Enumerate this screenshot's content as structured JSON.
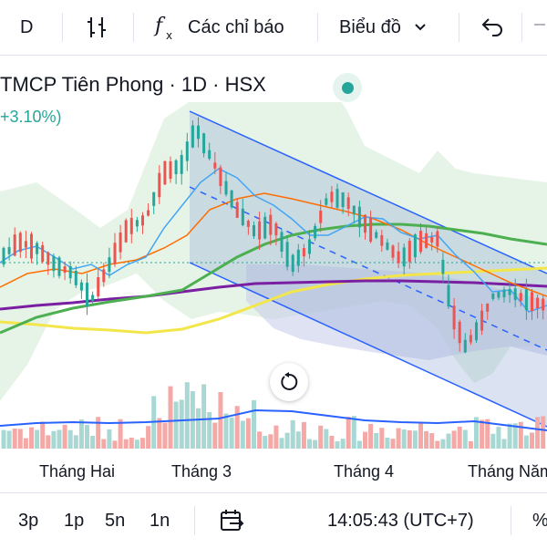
{
  "toolbar": {
    "interval_label": "D",
    "indicators_label": "Các chỉ báo",
    "chart_type_label": "Biểu đồ"
  },
  "legend": {
    "symbol_text": "TMCP Tiên Phong · 1D · HSX",
    "change_text": "+3.10%)",
    "status_color": "#26a69a"
  },
  "x_axis": {
    "labels": [
      "Tháng Hai",
      "Tháng 3",
      "Tháng 4",
      "Tháng Năm"
    ]
  },
  "bottom_bar": {
    "ranges": [
      "3p",
      "1p",
      "5n",
      "1n"
    ],
    "time": "14:05:43 (UTC+7)",
    "percent_label": "%"
  },
  "icons": {
    "indicator_template": "candle-bars-icon",
    "undo": "undo-icon",
    "reset": "reset-chart-icon",
    "goto_date": "goto-date-icon"
  },
  "colors": {
    "up": "#26a69a",
    "down": "#ef5350",
    "ma_short": "#2962ff",
    "ma_mid": "#ff6d00",
    "ma_long1": "#4caf50",
    "ma_long2": "#7b1fa2",
    "ma_long3": "#ffeb3b",
    "channel": "#2962ff"
  }
}
